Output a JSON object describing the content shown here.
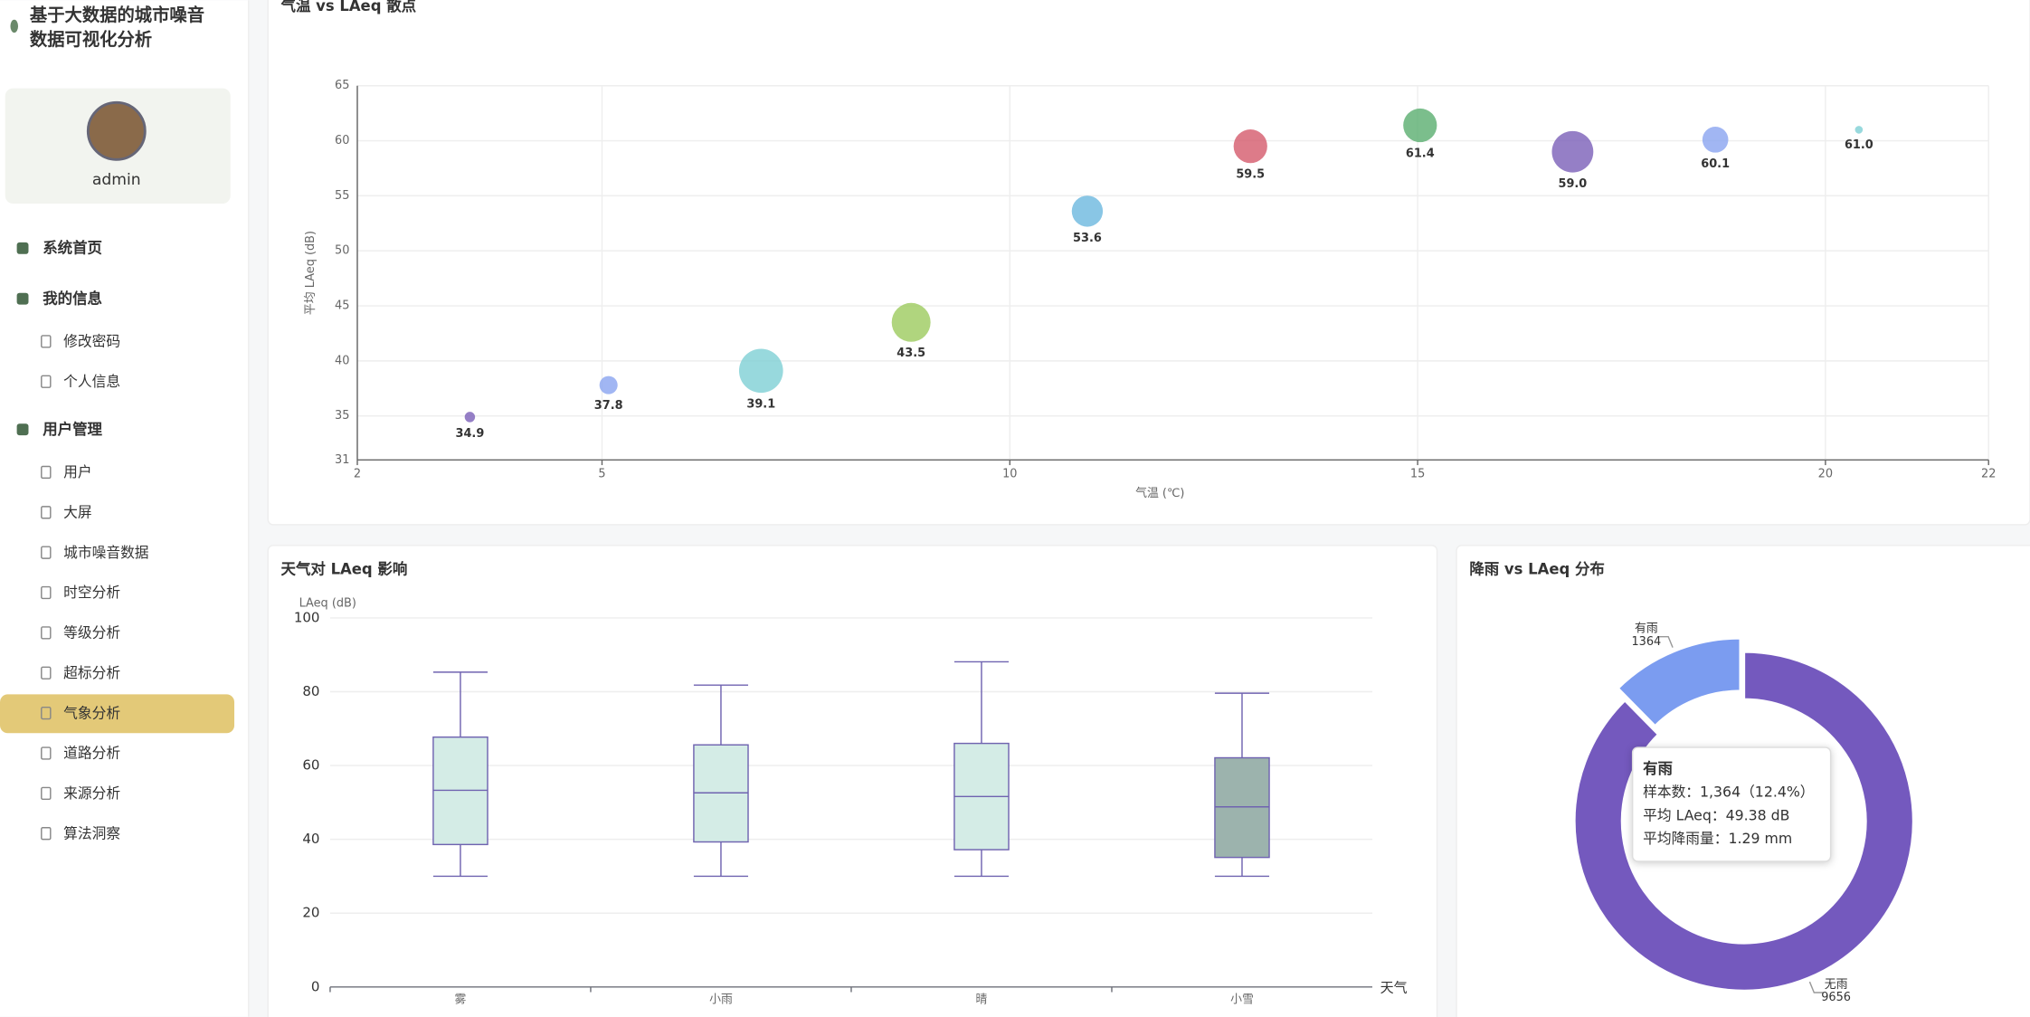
{
  "sidebar": {
    "title_lines": [
      "基于大数据的城市噪音",
      "数据可视化分析"
    ],
    "user": "admin",
    "menu": [
      {
        "label": "系统首页"
      },
      {
        "label": "我的信息",
        "children": [
          "修改密码",
          "个人信息"
        ]
      },
      {
        "label": "用户管理",
        "children": [
          "用户",
          "大屏",
          "城市噪音数据",
          "时空分析",
          "等级分析",
          "超标分析",
          "气象分析",
          "道路分析",
          "来源分析",
          "算法洞察"
        ]
      }
    ],
    "active": [
      2,
      6
    ]
  },
  "chart_data": [
    {
      "type": "scatter",
      "title": "气温 vs LAeq 散点",
      "x_label": "气温 (℃)",
      "y_label": "平均 LAeq (dB)",
      "x": [
        3.38,
        5.08,
        6.95,
        8.79,
        10.95,
        12.95,
        15.03,
        16.9,
        18.65,
        20.41
      ],
      "values": [
        34.9,
        37.8,
        39.1,
        43.5,
        53.6,
        59.5,
        61.4,
        59.0,
        60.1,
        61.0
      ],
      "value_labels": [
        "34.9",
        "37.8",
        "39.1",
        "43.5",
        "53.6",
        "59.5",
        "61.4",
        "59.0",
        "60.1",
        "61.0"
      ],
      "sizes": [
        4,
        7,
        17,
        15,
        12,
        13,
        13,
        16,
        10,
        3
      ],
      "colors": [
        "#7b5fb8",
        "#8aa4f0",
        "#7ecfd4",
        "#9ccb5e",
        "#6bb8de",
        "#d45a6b",
        "#5aae6f",
        "#7b5fb8",
        "#8aa4f0",
        "#7ecfd4"
      ],
      "xlim": [
        2,
        22
      ],
      "xticks": [
        2,
        5,
        10,
        15,
        20,
        22
      ],
      "ylim": [
        31,
        65
      ],
      "yticks": [
        31,
        35,
        40,
        45,
        50,
        55,
        60,
        65
      ],
      "grid": true
    },
    {
      "type": "box",
      "title": "天气对 LAeq 影响",
      "y_label": "LAeq (dB)",
      "x_label": "天气",
      "categories": [
        "雾",
        "小雨",
        "晴",
        "小雪"
      ],
      "boxes": [
        {
          "min": 30,
          "q1": 38.6,
          "median": 53.3,
          "q3": 67.7,
          "max": 85.3
        },
        {
          "min": 30,
          "q1": 39.3,
          "median": 52.6,
          "q3": 65.6,
          "max": 81.8
        },
        {
          "min": 30,
          "q1": 37.2,
          "median": 51.6,
          "q3": 66,
          "max": 88.1
        },
        {
          "min": 30,
          "q1": 35.1,
          "median": 48.8,
          "q3": 62.1,
          "max": 79.6
        }
      ],
      "colors": [
        "#d4ece6",
        "#d4ece6",
        "#d4ece6",
        "#9cb3ad"
      ],
      "stroke": "#6f63b0",
      "ylim": [
        0,
        100
      ],
      "yticks": [
        0,
        20,
        40,
        60,
        80,
        100
      ],
      "grid": true
    },
    {
      "type": "pie",
      "title": "降雨 vs LAeq 分布",
      "categories": [
        "有雨",
        "无雨"
      ],
      "values": [
        1364,
        9656
      ],
      "colors": [
        "#7b9cf0",
        "#7459be"
      ],
      "donut": true,
      "exploded": 0,
      "tooltip": {
        "title": "有雨",
        "lines": [
          "样本数：1,364（12.4%）",
          "平均 LAeq：49.38 dB",
          "平均降雨量：1.29 mm"
        ]
      }
    }
  ]
}
